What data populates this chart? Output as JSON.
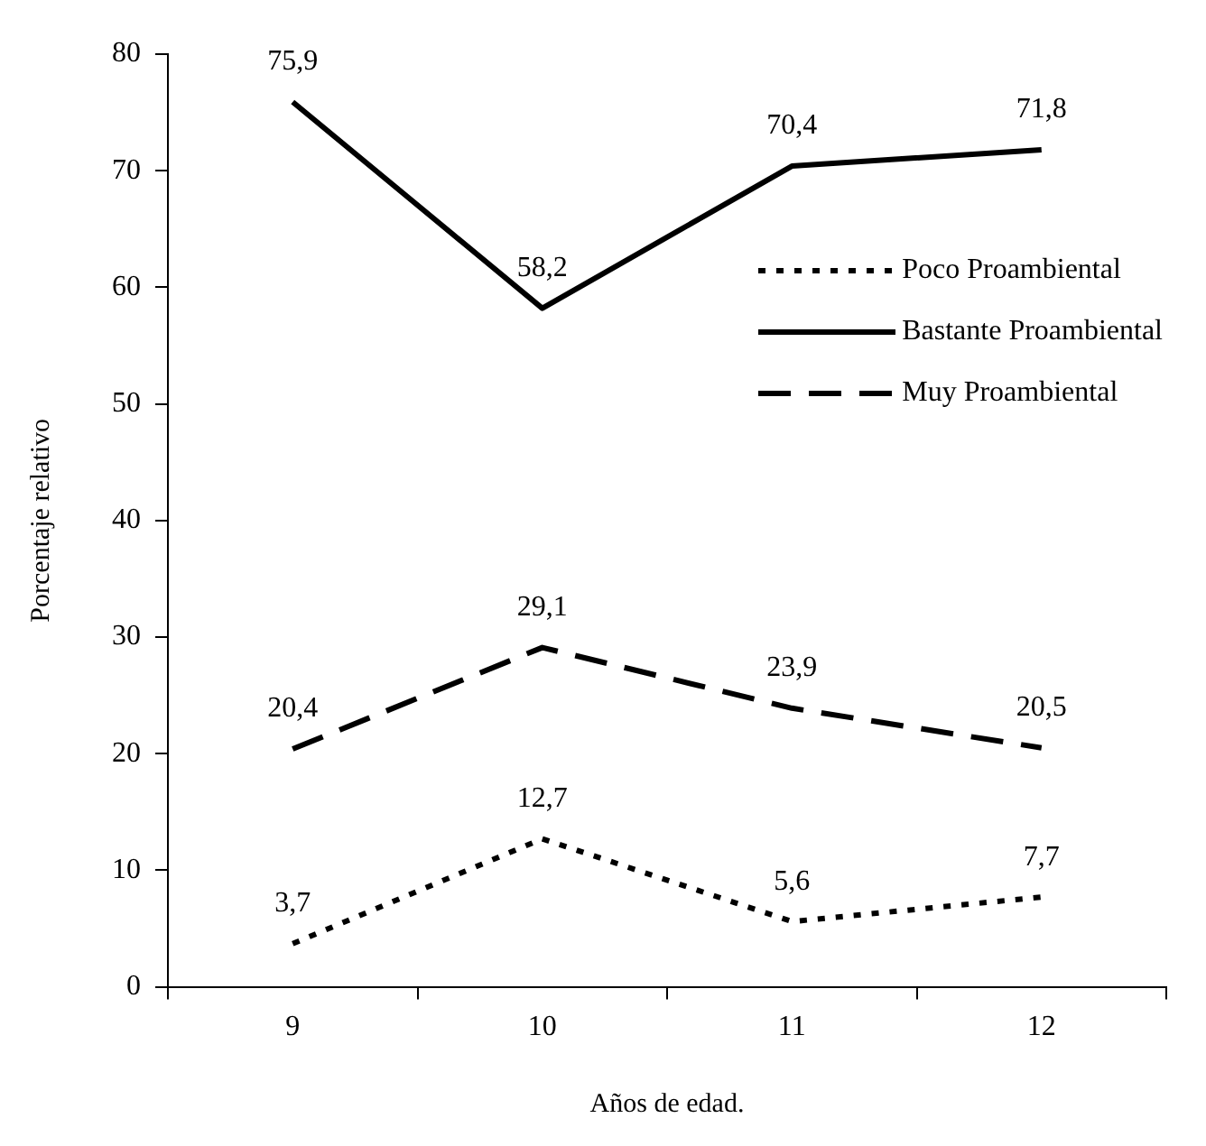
{
  "chart_data": {
    "type": "line",
    "xlabel": "Años de edad.",
    "ylabel": "Porcentaje relativo",
    "categories": [
      "9",
      "10",
      "11",
      "12"
    ],
    "series": [
      {
        "name": "Poco Proambiental",
        "color": "#000000",
        "line_style": "dotted",
        "values": [
          3.7,
          12.7,
          5.6,
          7.7
        ],
        "value_labels": [
          "3,7",
          "12,7",
          "5,6",
          "7,7"
        ]
      },
      {
        "name": "Bastante Proambiental",
        "color": "#000000",
        "line_style": "solid",
        "values": [
          75.9,
          58.2,
          70.4,
          71.8
        ],
        "value_labels": [
          "75,9",
          "58,2",
          "70,4",
          "71,8"
        ]
      },
      {
        "name": "Muy Proambiental",
        "color": "#000000",
        "line_style": "dashed",
        "values": [
          20.4,
          29.1,
          23.9,
          20.5
        ],
        "value_labels": [
          "20,4",
          "29,1",
          "23,9",
          "20,5"
        ]
      }
    ],
    "ylim": [
      0,
      80
    ],
    "yticks": [
      0,
      10,
      20,
      30,
      40,
      50,
      60,
      70,
      80
    ],
    "grid": false,
    "legend": "right",
    "marker": "none"
  }
}
